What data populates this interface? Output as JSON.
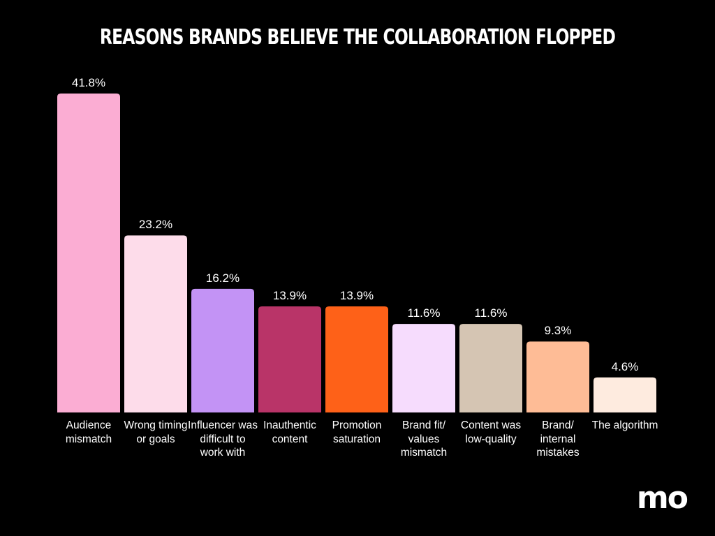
{
  "chart_data": {
    "type": "bar",
    "title": "REASONS BRANDS BELIEVE THE COLLABORATION FLOPPED",
    "categories": [
      "Audience mismatch",
      "Wrong timing or goals",
      "Influencer was difficult to work with",
      "Inauthentic content",
      "Promotion saturation",
      "Brand fit/ values mismatch",
      "Content was low-quality",
      "Brand/ internal mistakes",
      "The algorithm"
    ],
    "values": [
      41.8,
      23.2,
      16.2,
      13.9,
      13.9,
      11.6,
      11.6,
      9.3,
      4.6
    ],
    "value_labels": [
      "41.8%",
      "23.2%",
      "16.2%",
      "13.9%",
      "13.9%",
      "11.6%",
      "11.6%",
      "9.3%",
      "4.6%"
    ],
    "colors": [
      "#fbadd3",
      "#fddcea",
      "#c393f5",
      "#b93468",
      "#fe6118",
      "#f6dcfd",
      "#d5c5b3",
      "#febc96",
      "#feebdf"
    ]
  },
  "logo": "mo"
}
